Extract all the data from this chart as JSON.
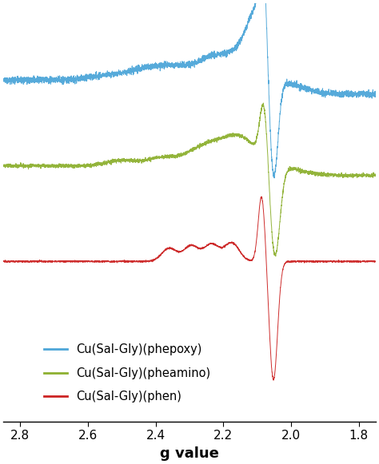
{
  "xlabel": "g value",
  "colors": {
    "blue": "#4da6d8",
    "green": "#8db030",
    "red": "#cc2222"
  },
  "legend_labels": [
    "Cu(Sal-Gly)(phepoxy)",
    "Cu(Sal-Gly)(pheamino)",
    "Cu(Sal-Gly)(phen)"
  ],
  "xticks": [
    2.8,
    2.6,
    2.4,
    2.2,
    2.0,
    1.8
  ],
  "xlabel_fontsize": 13,
  "legend_fontsize": 10.5,
  "blue_baseline": 0.58,
  "green_baseline": 0.22,
  "red_baseline": -0.18
}
